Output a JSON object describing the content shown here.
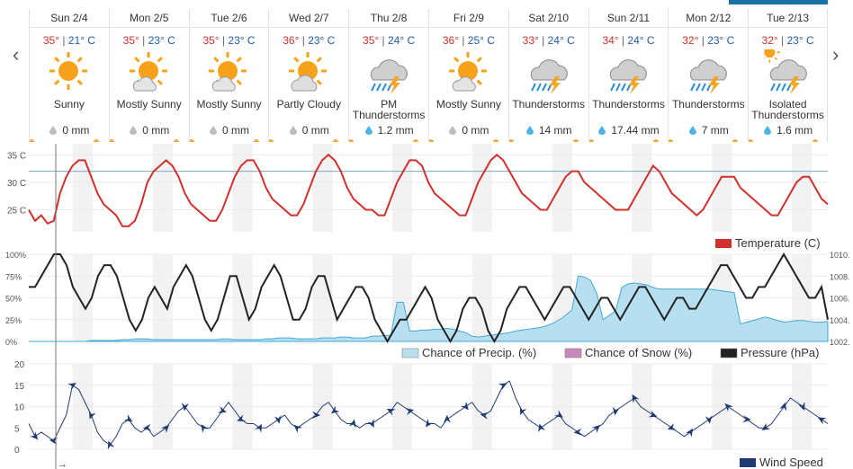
{
  "nav": {
    "prev": "‹",
    "next": "›"
  },
  "days": [
    {
      "name": "Sun 2/4",
      "hi": "35°",
      "lo": "21° C",
      "condition": "Sunny",
      "icon": "sunny-icon",
      "precip": "0 mm",
      "wet": false
    },
    {
      "name": "Mon 2/5",
      "hi": "35°",
      "lo": "23° C",
      "condition": "Mostly Sunny",
      "icon": "mostly-sunny-icon",
      "precip": "0 mm",
      "wet": false
    },
    {
      "name": "Tue 2/6",
      "hi": "35°",
      "lo": "23° C",
      "condition": "Mostly Sunny",
      "icon": "mostly-sunny-icon",
      "precip": "0 mm",
      "wet": false
    },
    {
      "name": "Wed 2/7",
      "hi": "36°",
      "lo": "23° C",
      "condition": "Partly Cloudy",
      "icon": "partly-cloudy-icon",
      "precip": "0 mm",
      "wet": false
    },
    {
      "name": "Thu 2/8",
      "hi": "35°",
      "lo": "24° C",
      "condition": "PM Thunderstorms",
      "icon": "thunderstorm-icon",
      "precip": "1.2 mm",
      "wet": true
    },
    {
      "name": "Fri 2/9",
      "hi": "36°",
      "lo": "25° C",
      "condition": "Mostly Sunny",
      "icon": "mostly-sunny-icon",
      "precip": "0 mm",
      "wet": false
    },
    {
      "name": "Sat 2/10",
      "hi": "33°",
      "lo": "24° C",
      "condition": "Thunderstorms",
      "icon": "thunderstorm-icon",
      "precip": "14 mm",
      "wet": true
    },
    {
      "name": "Sun 2/11",
      "hi": "34°",
      "lo": "24° C",
      "condition": "Thunderstorms",
      "icon": "thunderstorm-icon",
      "precip": "17.44 mm",
      "wet": true
    },
    {
      "name": "Mon 2/12",
      "hi": "32°",
      "lo": "23° C",
      "condition": "Thunderstorms",
      "icon": "thunderstorm-icon",
      "precip": "7 mm",
      "wet": true
    },
    {
      "name": "Tue 2/13",
      "hi": "32°",
      "lo": "23° C",
      "condition": "Isolated Thunderstorms",
      "icon": "isolated-thunderstorm-icon",
      "precip": "1.6 mm",
      "wet": true
    }
  ],
  "colors": {
    "temperature": "#d0312d",
    "precip_fill": "#b7dff0",
    "precip_stroke": "#42a8d8",
    "snow": "#c888b8",
    "pressure": "#222222",
    "wind": "#1f3a72",
    "ref_line": "#7aa6d8",
    "band": "#f2f2f2"
  },
  "chart_data": [
    {
      "type": "line",
      "legend": [
        {
          "name": "Temperature (C)",
          "color": "#d0312d"
        }
      ],
      "y_ticks": [
        "35 C",
        "30 C",
        "25 C"
      ],
      "ylim": [
        21,
        37
      ],
      "reference_line": 32,
      "x_days": 10,
      "series": [
        {
          "name": "Temperature (C)",
          "values": [
            25,
            23,
            24,
            22.5,
            23,
            28,
            31,
            33,
            34,
            34,
            31,
            28,
            26,
            25,
            24,
            22,
            22,
            23,
            26,
            30,
            32,
            33,
            34,
            33,
            31,
            28,
            26,
            25,
            24,
            23,
            23,
            25,
            28,
            31,
            33,
            34,
            34,
            32,
            29,
            27,
            26,
            25,
            24,
            24,
            26,
            29,
            32,
            34,
            35,
            34,
            32,
            29,
            27,
            26,
            25,
            25,
            24,
            24,
            27,
            30,
            32,
            34,
            34,
            33,
            30,
            28,
            27,
            26,
            25,
            24,
            24,
            27,
            30,
            32,
            34,
            35,
            34,
            32,
            30,
            28,
            27,
            26,
            25,
            25,
            27,
            29,
            31,
            32,
            32,
            30,
            29,
            28,
            27,
            26,
            25,
            25,
            25,
            27,
            29,
            31,
            33,
            32,
            30,
            28,
            27,
            26,
            25,
            24,
            25,
            27,
            29,
            31,
            31,
            31,
            29,
            28,
            27,
            26,
            25,
            24,
            24,
            26,
            28,
            30,
            31,
            31,
            29,
            27,
            26
          ]
        }
      ]
    },
    {
      "type": "area+line",
      "legend": [
        {
          "name": "Chance of Precip. (%)",
          "color": "#b7dff0"
        },
        {
          "name": "Chance of Snow (%)",
          "color": "#c888b8"
        },
        {
          "name": "Pressure (hPa)",
          "color": "#222222"
        }
      ],
      "left_ticks": [
        "100%",
        "75%",
        "50%",
        "25%",
        "0%"
      ],
      "right_ticks": [
        "1010.",
        "1008.",
        "1006.",
        "1004.",
        "1002."
      ],
      "x_days": 10,
      "precip": [
        0,
        0,
        0,
        0,
        0,
        0,
        0,
        0,
        0,
        0,
        1,
        1,
        1,
        1,
        1,
        2,
        2,
        3,
        3,
        3,
        2,
        2,
        2,
        2,
        2,
        2,
        2,
        2,
        2,
        2,
        2,
        3,
        3,
        2,
        2,
        2,
        2,
        2,
        3,
        3,
        4,
        4,
        4,
        3,
        3,
        3,
        3,
        4,
        4,
        4,
        5,
        5,
        4,
        4,
        4,
        6,
        6,
        7,
        7,
        45,
        45,
        12,
        12,
        13,
        13,
        14,
        14,
        15,
        14,
        12,
        10,
        6,
        5,
        6,
        7,
        8,
        9,
        10,
        12,
        13,
        14,
        15,
        16,
        18,
        21,
        25,
        30,
        36,
        75,
        74,
        70,
        55,
        25,
        30,
        35,
        62,
        66,
        67,
        66,
        65,
        62,
        60,
        60,
        60,
        60,
        60,
        60,
        60,
        60,
        60,
        59,
        58,
        57,
        56,
        20,
        22,
        24,
        26,
        28,
        26,
        24,
        22,
        23,
        24,
        24,
        23,
        22,
        22,
        23
      ],
      "pressure": [
        1007,
        1007,
        1008,
        1009,
        1010,
        1010,
        1009,
        1007,
        1006,
        1005,
        1006,
        1008,
        1009,
        1009,
        1008,
        1006,
        1004,
        1003,
        1004,
        1006,
        1007,
        1006,
        1005,
        1007,
        1008,
        1009,
        1008,
        1006,
        1004,
        1003,
        1004,
        1006,
        1008,
        1008,
        1006,
        1004,
        1005,
        1007,
        1008,
        1009,
        1008,
        1006,
        1004,
        1004,
        1005,
        1007,
        1008,
        1008,
        1006,
        1004,
        1005,
        1006,
        1007,
        1007,
        1006,
        1004,
        1003,
        1002,
        1003,
        1004,
        1004,
        1005,
        1006,
        1007,
        1006,
        1004,
        1003,
        1002,
        1003,
        1005,
        1006,
        1006,
        1005,
        1003,
        1002,
        1003,
        1005,
        1006,
        1007,
        1007,
        1006,
        1005,
        1004,
        1005,
        1006,
        1007,
        1007,
        1006,
        1005,
        1004,
        1005,
        1006,
        1006,
        1005,
        1004,
        1005,
        1006,
        1007,
        1007,
        1006,
        1005,
        1004,
        1005,
        1006,
        1006,
        1005,
        1005,
        1006,
        1007,
        1008,
        1009,
        1009,
        1008,
        1007,
        1006,
        1006,
        1007,
        1007,
        1008,
        1009,
        1010,
        1009,
        1008,
        1007,
        1006,
        1006,
        1007,
        1004
      ]
    },
    {
      "type": "line",
      "legend": [
        {
          "name": "Wind Speed",
          "color": "#1f3a72"
        }
      ],
      "y_ticks": [
        "20",
        "15",
        "10",
        "5",
        "0"
      ],
      "ylim": [
        0,
        20
      ],
      "x_days": 10,
      "values": [
        6,
        3,
        4,
        3,
        2,
        5,
        8,
        15,
        14,
        11,
        8,
        4,
        2,
        1,
        3,
        6,
        7,
        5,
        4,
        5,
        3,
        4,
        5,
        7,
        9,
        10,
        8,
        6,
        5,
        5,
        7,
        9,
        11,
        9,
        7,
        6,
        6,
        5,
        5,
        6,
        7,
        8,
        6,
        5,
        6,
        7,
        8,
        10,
        11,
        9,
        7,
        6,
        6,
        5,
        6,
        6,
        7,
        8,
        9,
        11,
        10,
        9,
        8,
        7,
        6,
        6,
        5,
        7,
        8,
        9,
        10,
        11,
        9,
        8,
        9,
        12,
        15,
        16,
        12,
        9,
        7,
        6,
        5,
        6,
        7,
        8,
        6,
        5,
        4,
        3,
        4,
        5,
        6,
        8,
        9,
        10,
        11,
        12,
        10,
        9,
        8,
        7,
        6,
        5,
        4,
        3,
        4,
        5,
        6,
        7,
        8,
        9,
        10,
        9,
        8,
        7,
        6,
        5,
        5,
        6,
        8,
        10,
        12,
        11,
        10,
        9,
        8,
        7,
        6
      ]
    }
  ]
}
